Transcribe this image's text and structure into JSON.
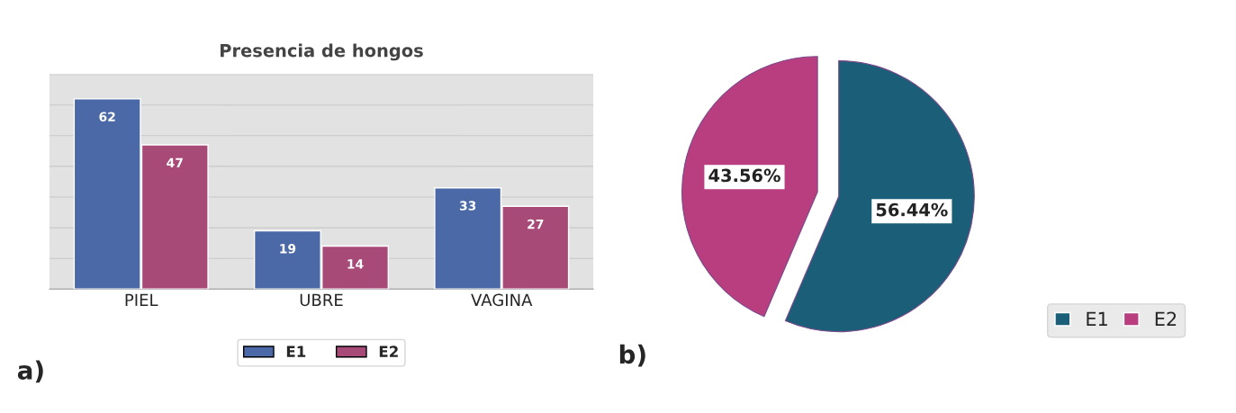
{
  "chart_data": [
    {
      "type": "bar",
      "title": "Presencia de hongos",
      "categories": [
        "PIEL",
        "UBRE",
        "VAGINA"
      ],
      "series": [
        {
          "name": "E1",
          "color": "#4a69a6",
          "values": [
            62,
            19,
            33
          ]
        },
        {
          "name": "E2",
          "color": "#a84a78",
          "values": [
            47,
            14,
            27
          ]
        }
      ],
      "ylim": [
        0,
        70
      ],
      "yticks": [
        {
          "value": 0,
          "label": null
        },
        {
          "value": 10,
          "label": null
        },
        {
          "value": 20,
          "label": null
        },
        {
          "value": 30,
          "label": null
        },
        {
          "value": 40,
          "label": null
        },
        {
          "value": 50,
          "label": null
        },
        {
          "value": 60,
          "label": null
        },
        {
          "value": 70,
          "label": null
        }
      ],
      "tick_labels": "x",
      "grid": "y",
      "legend": "bottom",
      "data_labels": true,
      "annotations": [
        "a)"
      ]
    },
    {
      "type": "pie",
      "categories": [
        "E1",
        "E2"
      ],
      "values": [
        56.44,
        43.56
      ],
      "colors": [
        "#1b5e78",
        "#b83e7f"
      ],
      "value_labels": [
        "56.44%",
        "43.56%"
      ],
      "legend": "bottom right",
      "annotations": [
        "b)"
      ]
    }
  ]
}
